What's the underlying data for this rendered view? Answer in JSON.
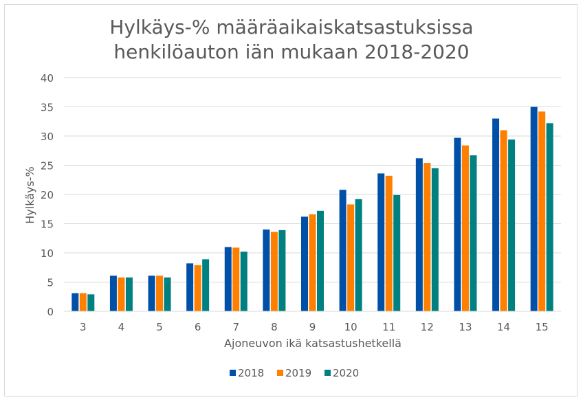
{
  "chart_data": {
    "type": "bar",
    "title_lines": [
      "Hylkäys-% määräaikaiskatsastuksissa",
      "henkilöauton iän mukaan 2018-2020"
    ],
    "xlabel": "Ajoneuvon ikä katsastushetkellä",
    "ylabel": "Hylkäys-%",
    "ylim": [
      0,
      40
    ],
    "yticks": [
      0,
      5,
      10,
      15,
      20,
      25,
      30,
      35,
      40
    ],
    "grid": true,
    "legend_position": "bottom",
    "categories": [
      "3",
      "4",
      "5",
      "6",
      "7",
      "8",
      "9",
      "10",
      "11",
      "12",
      "13",
      "14",
      "15"
    ],
    "series": [
      {
        "name": "2018",
        "color": "#0050a8",
        "values": [
          3.1,
          6.1,
          6.1,
          8.2,
          11.0,
          14.0,
          16.2,
          20.8,
          23.6,
          26.2,
          29.7,
          33.0,
          35.0
        ]
      },
      {
        "name": "2019",
        "color": "#ff7f00",
        "values": [
          3.1,
          5.8,
          6.1,
          7.9,
          10.9,
          13.6,
          16.6,
          18.3,
          23.2,
          25.4,
          28.4,
          31.0,
          34.2
        ]
      },
      {
        "name": "2020",
        "color": "#008080",
        "values": [
          2.9,
          5.8,
          5.8,
          8.9,
          10.2,
          13.9,
          17.2,
          19.2,
          19.9,
          24.5,
          26.7,
          29.4,
          32.2
        ]
      }
    ]
  }
}
